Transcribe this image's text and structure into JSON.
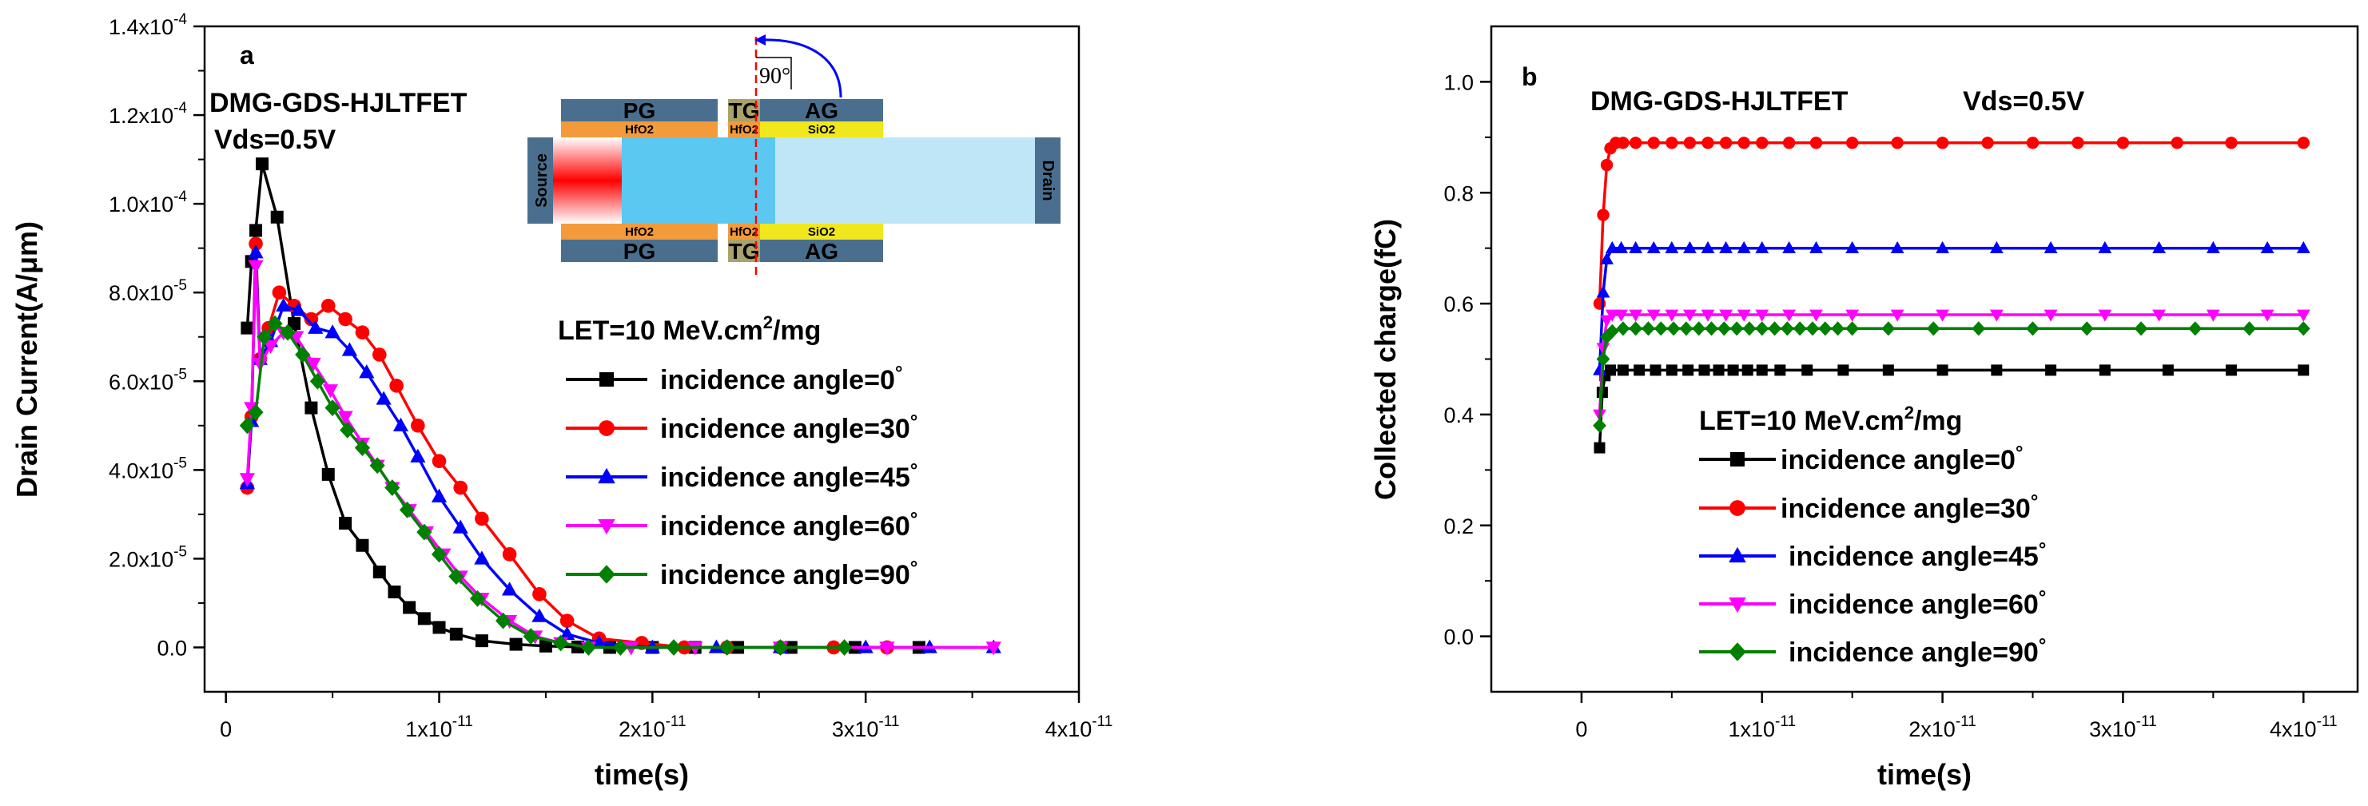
{
  "colors": {
    "s0": "#000000",
    "s30": "#ff0000",
    "s45": "#0000ff",
    "s60": "#ff00ff",
    "s90": "#008000",
    "inset_gate": "#4a6f8e",
    "inset_hfo2": "#f39a3a",
    "inset_sio2": "#f0e81c",
    "inset_tg": "#a9a26a",
    "inset_body": "#5bc8f2",
    "inset_drain_ext": "#bfe6f7",
    "inset_source": "#ff1010",
    "inset_angle": "#0000ff",
    "inset_beam": "#ff0000"
  },
  "inset": {
    "pg": "PG",
    "tg": "TG",
    "ag": "AG",
    "hfo2": "HfO2",
    "sio2": "SiO2",
    "source": "Source",
    "drain": "Drain",
    "angle": "90°"
  },
  "chart_data": [
    {
      "id": "a",
      "type": "line",
      "panel_label": "a",
      "xlabel": "time(s)",
      "ylabel": "Drain Current(A/μm)",
      "xlim": [
        -1e-12,
        4e-11
      ],
      "ylim": [
        -1e-05,
        0.00014
      ],
      "xticks": [
        {
          "value": 0,
          "mant": "0",
          "exp": ""
        },
        {
          "value": 1e-11,
          "mant": "1x10",
          "exp": "-11"
        },
        {
          "value": 2e-11,
          "mant": "2x10",
          "exp": "-11"
        },
        {
          "value": 3e-11,
          "mant": "3x10",
          "exp": "-11"
        },
        {
          "value": 4e-11,
          "mant": "4x10",
          "exp": "-11"
        }
      ],
      "yticks": [
        {
          "value": 0,
          "mant": "0.0",
          "exp": ""
        },
        {
          "value": 2e-05,
          "mant": "2.0x10",
          "exp": "-5"
        },
        {
          "value": 4e-05,
          "mant": "4.0x10",
          "exp": "-5"
        },
        {
          "value": 6e-05,
          "mant": "6.0x10",
          "exp": "-5"
        },
        {
          "value": 8e-05,
          "mant": "8.0x10",
          "exp": "-5"
        },
        {
          "value": 0.0001,
          "mant": "1.0x10",
          "exp": "-4"
        },
        {
          "value": 0.00012,
          "mant": "1.2x10",
          "exp": "-4"
        },
        {
          "value": 0.00014,
          "mant": "1.4x10",
          "exp": "-4"
        }
      ],
      "annotations": [
        "DMG-GDS-HJLTFET",
        "Vds=0.5V"
      ],
      "legend_title_main": "LET=10 MeV.cm",
      "legend_title_sup": "2",
      "legend_title_tail": "/mg",
      "series": [
        {
          "name": "incidence angle=0",
          "deg": "°",
          "color_key": "s0",
          "marker": "square",
          "x": [
            1e-12,
            1.2e-12,
            1.4e-12,
            1.7e-12,
            2.4e-12,
            3.2e-12,
            4e-12,
            4.8e-12,
            5.6e-12,
            6.4e-12,
            7.2e-12,
            7.9e-12,
            8.6e-12,
            9.3e-12,
            1e-11,
            1.08e-11,
            1.2e-11,
            1.36e-11,
            1.5e-11,
            1.65e-11,
            1.8e-11,
            2e-11,
            2.2e-11,
            2.4e-11,
            2.65e-11,
            2.95e-11,
            3.25e-11
          ],
          "y": [
            7.2e-05,
            8.7e-05,
            9.4e-05,
            0.000109,
            9.7e-05,
            7.3e-05,
            5.4e-05,
            3.9e-05,
            2.8e-05,
            2.3e-05,
            1.7e-05,
            1.25e-05,
            9e-06,
            6.5e-06,
            4.5e-06,
            3e-06,
            1.5e-06,
            7e-07,
            3e-07,
            1e-07,
            0,
            0,
            0,
            0,
            0,
            0,
            0
          ]
        },
        {
          "name": "incidence angle=30",
          "deg": "°",
          "color_key": "s30",
          "marker": "circle",
          "x": [
            1e-12,
            1.2e-12,
            1.4e-12,
            1.6e-12,
            2e-12,
            2.5e-12,
            3.2e-12,
            4e-12,
            4.8e-12,
            5.6e-12,
            6.4e-12,
            7.2e-12,
            8e-12,
            9e-12,
            1e-11,
            1.1e-11,
            1.2e-11,
            1.33e-11,
            1.47e-11,
            1.6e-11,
            1.75e-11,
            1.95e-11,
            2.15e-11,
            2.35e-11,
            2.6e-11,
            2.85e-11,
            3.1e-11
          ],
          "y": [
            3.6e-05,
            5.2e-05,
            9.1e-05,
            6.5e-05,
            7.2e-05,
            8e-05,
            7.7e-05,
            7.4e-05,
            7.7e-05,
            7.4e-05,
            7.1e-05,
            6.6e-05,
            5.9e-05,
            5e-05,
            4.2e-05,
            3.6e-05,
            2.9e-05,
            2.1e-05,
            1.2e-05,
            6e-06,
            2e-06,
            1e-06,
            0,
            0,
            0,
            0,
            0
          ]
        },
        {
          "name": "incidence angle=45",
          "deg": "°",
          "color_key": "s45",
          "marker": "triangle-up",
          "x": [
            1e-12,
            1.2e-12,
            1.4e-12,
            1.6e-12,
            2.1e-12,
            2.7e-12,
            3.4e-12,
            4.2e-12,
            5e-12,
            5.8e-12,
            6.6e-12,
            7.4e-12,
            8.2e-12,
            9e-12,
            1e-11,
            1.1e-11,
            1.2e-11,
            1.33e-11,
            1.47e-11,
            1.6e-11,
            1.75e-11,
            2e-11,
            2.3e-11,
            2.6e-11,
            3e-11,
            3.3e-11,
            3.6e-11
          ],
          "y": [
            3.7e-05,
            5.1e-05,
            8.9e-05,
            6.5e-05,
            6.9e-05,
            7.7e-05,
            7.6e-05,
            7.2e-05,
            7.1e-05,
            6.7e-05,
            6.2e-05,
            5.6e-05,
            5e-05,
            4.3e-05,
            3.4e-05,
            2.7e-05,
            2e-05,
            1.3e-05,
            7e-06,
            3e-06,
            1e-06,
            0,
            0,
            0,
            0,
            0,
            0
          ]
        },
        {
          "name": "incidence angle=60",
          "deg": "°",
          "color_key": "s60",
          "marker": "triangle-down",
          "x": [
            1e-12,
            1.2e-12,
            1.4e-12,
            1.6e-12,
            2.1e-12,
            2.7e-12,
            3.3e-12,
            4.1e-12,
            4.9e-12,
            5.6e-12,
            6.4e-12,
            7.1e-12,
            7.8e-12,
            8.6e-12,
            9.4e-12,
            1.02e-11,
            1.1e-11,
            1.2e-11,
            1.33e-11,
            1.45e-11,
            1.57e-11,
            1.7e-11,
            1.9e-11,
            2.2e-11,
            2.6e-11,
            3.1e-11,
            3.6e-11
          ],
          "y": [
            3.8e-05,
            5.4e-05,
            8.6e-05,
            6.4e-05,
            6.8e-05,
            7.1e-05,
            7e-05,
            6.4e-05,
            5.8e-05,
            5.2e-05,
            4.6e-05,
            4.1e-05,
            3.6e-05,
            3.1e-05,
            2.6e-05,
            2.1e-05,
            1.6e-05,
            1.1e-05,
            6e-06,
            2.5e-06,
            1e-06,
            0,
            0,
            0,
            0,
            0,
            0
          ]
        },
        {
          "name": "incidence angle=90",
          "deg": "°",
          "color_key": "s90",
          "marker": "diamond",
          "x": [
            1e-12,
            1.4e-12,
            1.8e-12,
            2.3e-12,
            2.9e-12,
            3.6e-12,
            4.3e-12,
            5e-12,
            5.7e-12,
            6.4e-12,
            7.1e-12,
            7.8e-12,
            8.5e-12,
            9.3e-12,
            1e-11,
            1.08e-11,
            1.18e-11,
            1.3e-11,
            1.43e-11,
            1.57e-11,
            1.7e-11,
            1.85e-11,
            2.1e-11,
            2.35e-11,
            2.6e-11,
            2.9e-11
          ],
          "y": [
            5e-05,
            5.3e-05,
            7e-05,
            7.3e-05,
            7.1e-05,
            6.6e-05,
            6e-05,
            5.4e-05,
            4.9e-05,
            4.5e-05,
            4.1e-05,
            3.6e-05,
            3.1e-05,
            2.6e-05,
            2.1e-05,
            1.6e-05,
            1.1e-05,
            6e-06,
            2.5e-06,
            1e-06,
            0,
            0,
            0,
            0,
            0,
            0
          ]
        }
      ]
    },
    {
      "id": "b",
      "type": "line",
      "panel_label": "b",
      "xlabel": "time(s)",
      "ylabel": "Collected charge(fC)",
      "xlim": [
        -5e-12,
        4.3e-11
      ],
      "ylim": [
        -0.1,
        1.1
      ],
      "xticks": [
        {
          "value": 0,
          "mant": "0",
          "exp": ""
        },
        {
          "value": 1e-11,
          "mant": "1x10",
          "exp": "-11"
        },
        {
          "value": 2e-11,
          "mant": "2x10",
          "exp": "-11"
        },
        {
          "value": 3e-11,
          "mant": "3x10",
          "exp": "-11"
        },
        {
          "value": 4e-11,
          "mant": "4x10",
          "exp": "-11"
        }
      ],
      "yticks": [
        {
          "value": 0,
          "mant": "0.0",
          "exp": ""
        },
        {
          "value": 0.2,
          "mant": "0.2",
          "exp": ""
        },
        {
          "value": 0.4,
          "mant": "0.4",
          "exp": ""
        },
        {
          "value": 0.6,
          "mant": "0.6",
          "exp": ""
        },
        {
          "value": 0.8,
          "mant": "0.8",
          "exp": ""
        },
        {
          "value": 1.0,
          "mant": "1.0",
          "exp": ""
        }
      ],
      "annotations": [
        "DMG-GDS-HJLTFET",
        "Vds=0.5V"
      ],
      "legend_title_main": "LET=10 MeV.cm",
      "legend_title_sup": "2",
      "legend_title_tail": "/mg",
      "series": [
        {
          "name": "incidence angle=0",
          "deg": "°",
          "color_key": "s0",
          "marker": "square",
          "x": [
            1e-12,
            1.15e-12,
            1.3e-12,
            1.6e-12,
            2.3e-12,
            3.2e-12,
            4.1e-12,
            5e-12,
            5.9e-12,
            6.8e-12,
            7.6e-12,
            8.4e-12,
            9.2e-12,
            1e-11,
            1.1e-11,
            1.25e-11,
            1.45e-11,
            1.7e-11,
            2e-11,
            2.3e-11,
            2.6e-11,
            2.9e-11,
            3.25e-11,
            3.6e-11,
            4e-11
          ],
          "y": [
            0.34,
            0.44,
            0.47,
            0.48,
            0.48,
            0.48,
            0.48,
            0.48,
            0.48,
            0.48,
            0.48,
            0.48,
            0.48,
            0.48,
            0.48,
            0.48,
            0.48,
            0.48,
            0.48,
            0.48,
            0.48,
            0.48,
            0.48,
            0.48,
            0.48
          ]
        },
        {
          "name": "incidence angle=30",
          "deg": "°",
          "color_key": "s30",
          "marker": "circle",
          "x": [
            1e-12,
            1.2e-12,
            1.4e-12,
            1.6e-12,
            1.9e-12,
            2.3e-12,
            3e-12,
            4e-12,
            5e-12,
            6e-12,
            7e-12,
            8e-12,
            9e-12,
            1e-11,
            1.15e-11,
            1.3e-11,
            1.5e-11,
            1.75e-11,
            2e-11,
            2.25e-11,
            2.5e-11,
            2.75e-11,
            3e-11,
            3.3e-11,
            3.6e-11,
            4e-11
          ],
          "y": [
            0.6,
            0.76,
            0.85,
            0.88,
            0.89,
            0.89,
            0.89,
            0.89,
            0.89,
            0.89,
            0.89,
            0.89,
            0.89,
            0.89,
            0.89,
            0.89,
            0.89,
            0.89,
            0.89,
            0.89,
            0.89,
            0.89,
            0.89,
            0.89,
            0.89,
            0.89
          ]
        },
        {
          "name": "incidence angle=45",
          "deg": "°",
          "color_key": "s45",
          "marker": "triangle-up",
          "x": [
            1e-12,
            1.2e-12,
            1.4e-12,
            1.7e-12,
            2.2e-12,
            3e-12,
            4e-12,
            5e-12,
            6e-12,
            7e-12,
            8e-12,
            9e-12,
            1e-11,
            1.15e-11,
            1.3e-11,
            1.5e-11,
            1.75e-11,
            2e-11,
            2.3e-11,
            2.6e-11,
            2.9e-11,
            3.2e-11,
            3.5e-11,
            3.8e-11,
            4e-11
          ],
          "y": [
            0.48,
            0.62,
            0.68,
            0.7,
            0.7,
            0.7,
            0.7,
            0.7,
            0.7,
            0.7,
            0.7,
            0.7,
            0.7,
            0.7,
            0.7,
            0.7,
            0.7,
            0.7,
            0.7,
            0.7,
            0.7,
            0.7,
            0.7,
            0.7,
            0.7
          ]
        },
        {
          "name": "incidence angle=60",
          "deg": "°",
          "color_key": "s60",
          "marker": "triangle-down",
          "x": [
            1e-12,
            1.2e-12,
            1.4e-12,
            1.7e-12,
            2.2e-12,
            3e-12,
            4e-12,
            5e-12,
            6e-12,
            7e-12,
            8e-12,
            9e-12,
            1e-11,
            1.15e-11,
            1.3e-11,
            1.5e-11,
            1.75e-11,
            2e-11,
            2.3e-11,
            2.6e-11,
            2.9e-11,
            3.2e-11,
            3.5e-11,
            3.8e-11,
            4e-11
          ],
          "y": [
            0.4,
            0.52,
            0.57,
            0.58,
            0.58,
            0.58,
            0.58,
            0.58,
            0.58,
            0.58,
            0.58,
            0.58,
            0.58,
            0.58,
            0.58,
            0.58,
            0.58,
            0.58,
            0.58,
            0.58,
            0.58,
            0.58,
            0.58,
            0.58,
            0.58
          ]
        },
        {
          "name": "incidence angle=90",
          "deg": "°",
          "color_key": "s90",
          "marker": "diamond",
          "x": [
            1e-12,
            1.2e-12,
            1.4e-12,
            1.7e-12,
            2.3e-12,
            3e-12,
            3.7e-12,
            4.4e-12,
            5.1e-12,
            5.8e-12,
            6.5e-12,
            7.2e-12,
            7.9e-12,
            8.6e-12,
            9.3e-12,
            1e-11,
            1.07e-11,
            1.14e-11,
            1.21e-11,
            1.28e-11,
            1.35e-11,
            1.42e-11,
            1.5e-11,
            1.7e-11,
            1.95e-11,
            2.2e-11,
            2.5e-11,
            2.8e-11,
            3.1e-11,
            3.4e-11,
            3.7e-11,
            4e-11
          ],
          "y": [
            0.38,
            0.5,
            0.54,
            0.55,
            0.555,
            0.555,
            0.555,
            0.555,
            0.555,
            0.555,
            0.555,
            0.555,
            0.555,
            0.555,
            0.555,
            0.555,
            0.555,
            0.555,
            0.555,
            0.555,
            0.555,
            0.555,
            0.555,
            0.555,
            0.555,
            0.555,
            0.555,
            0.555,
            0.555,
            0.555,
            0.555,
            0.555
          ]
        }
      ]
    }
  ]
}
